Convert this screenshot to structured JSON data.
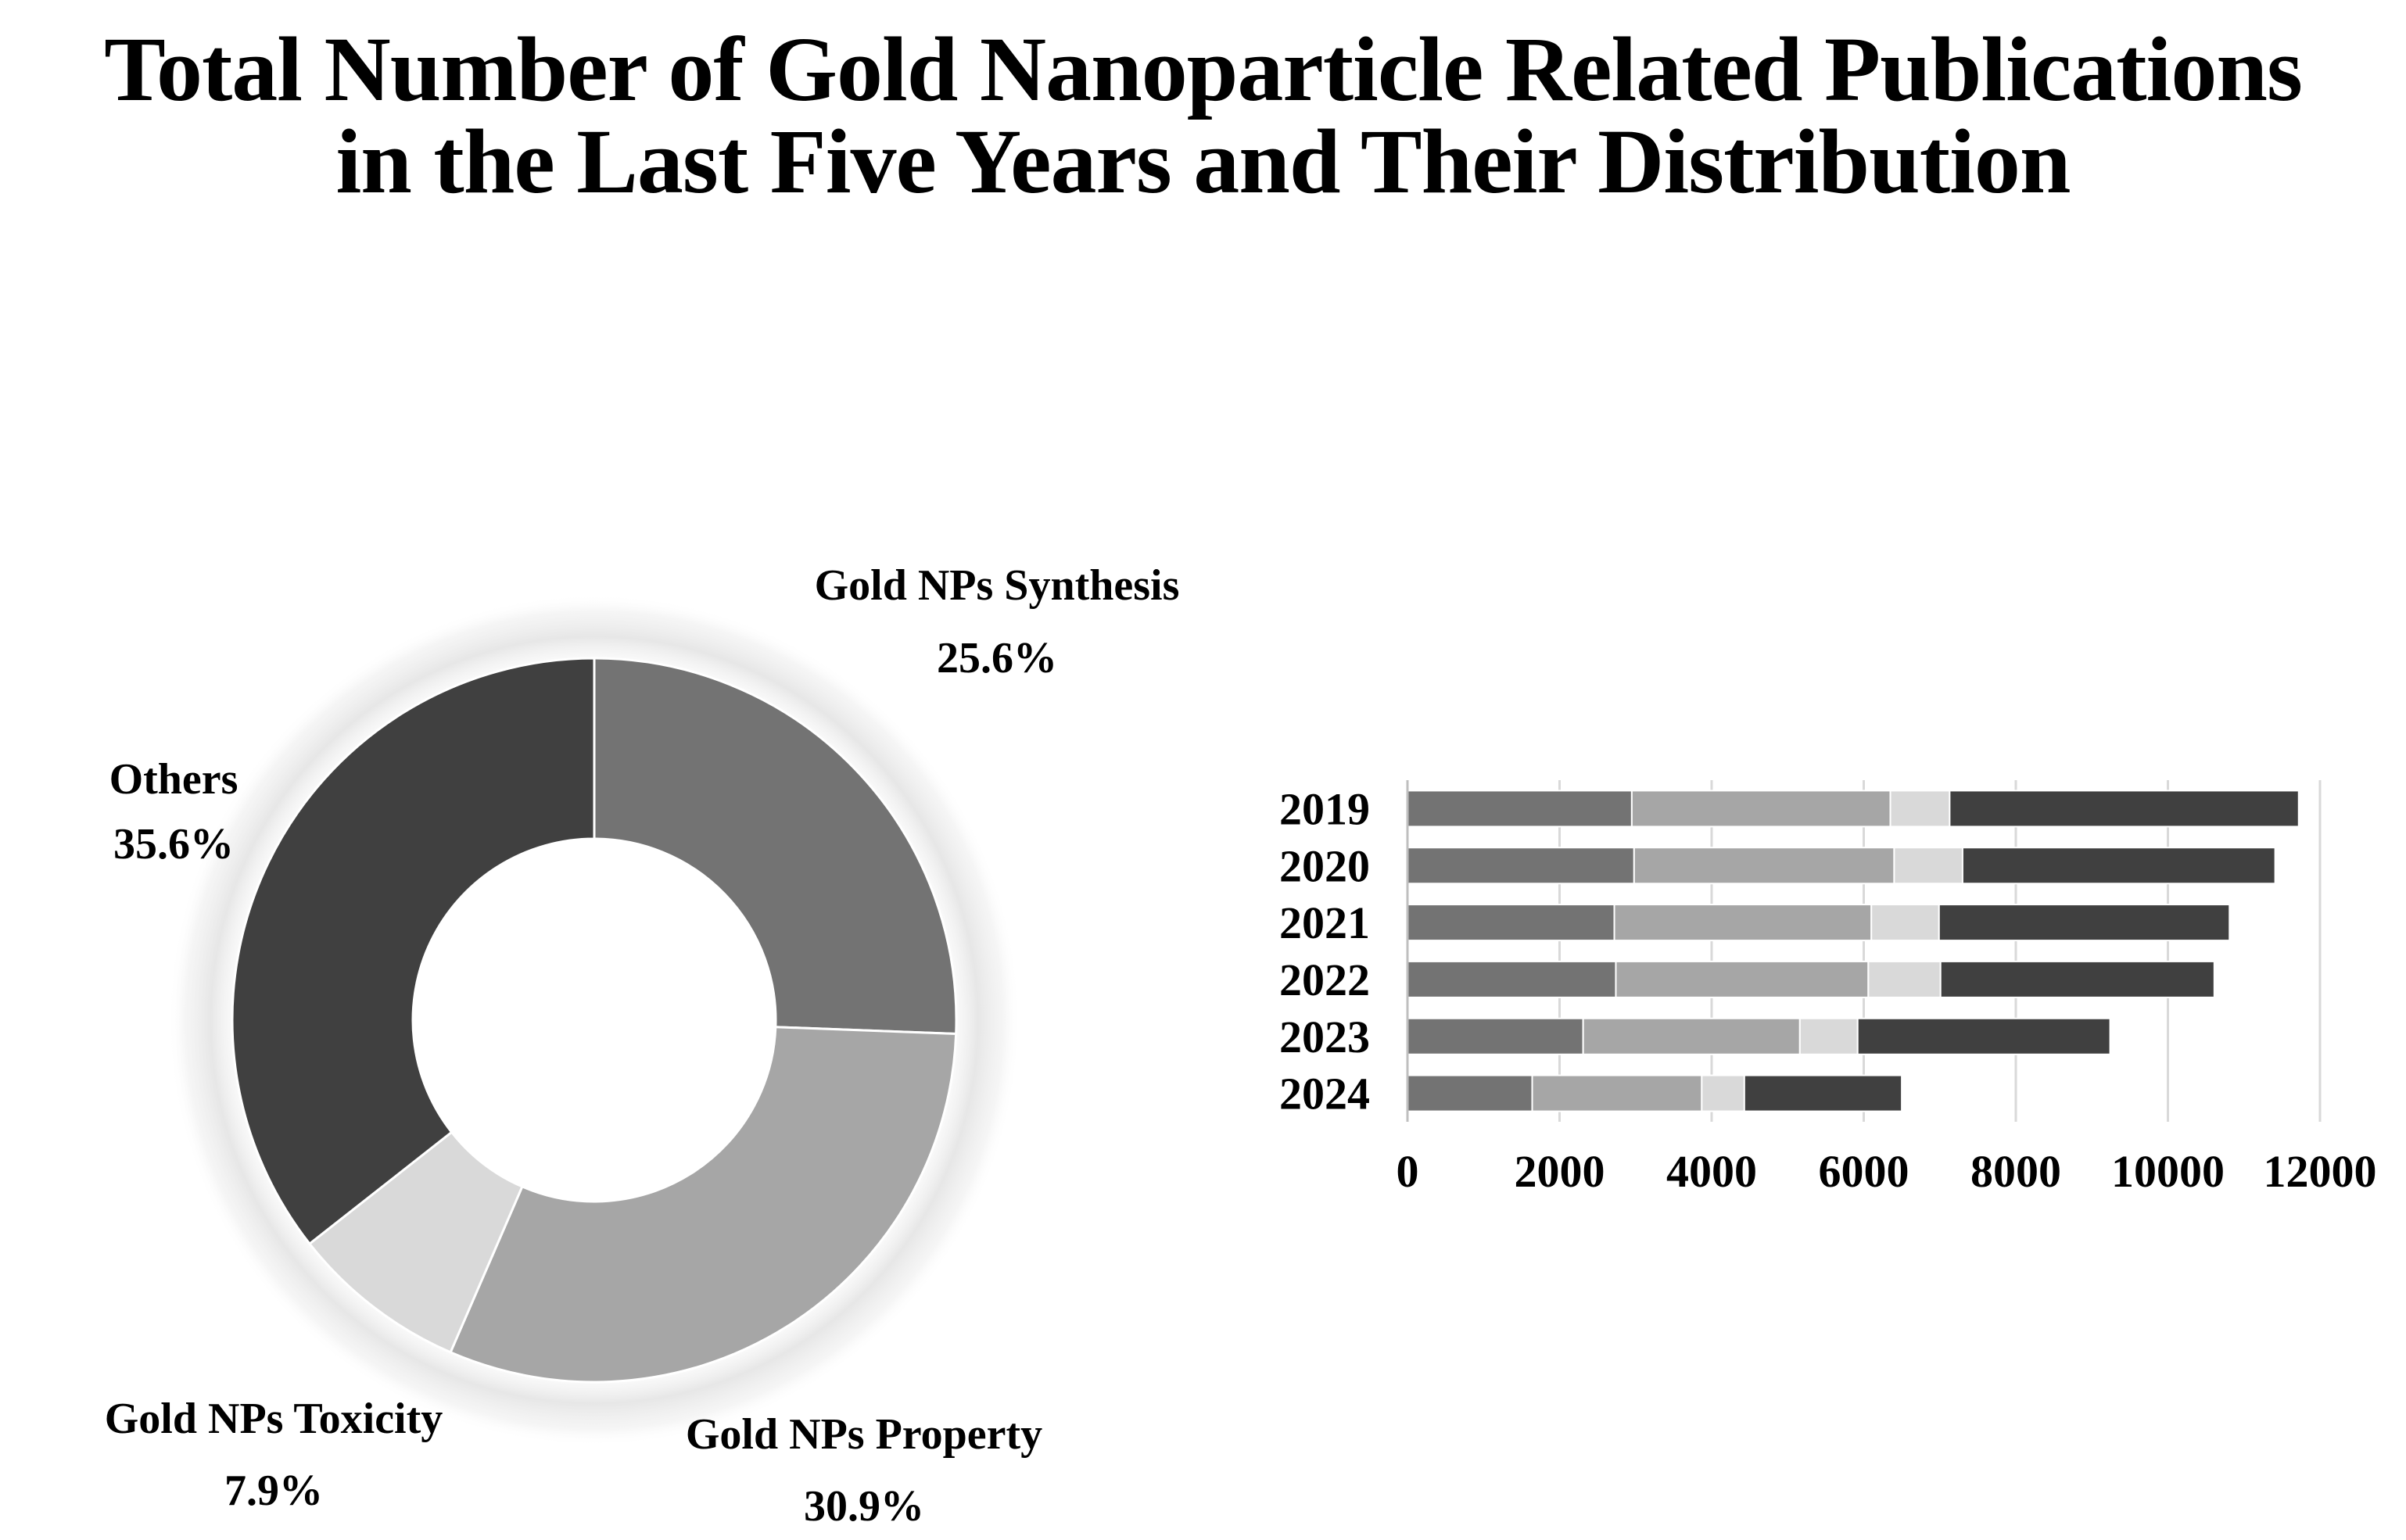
{
  "title_line1": "Total Number of Gold Nanoparticle Related Publications",
  "title_line2": "in the Last Five Years and Their Distribution",
  "colors": {
    "synthesis": "#737373",
    "property": "#a6a6a6",
    "toxicity": "#d9d9d9",
    "others": "#404040",
    "grid": "#d9d9d9",
    "text": "#000000"
  },
  "chart_data": [
    {
      "type": "pie",
      "variant": "donut",
      "title": "",
      "slices": [
        {
          "label": "Gold NPs Synthesis",
          "value": 25.6,
          "display": "25.6%",
          "color_key": "synthesis"
        },
        {
          "label": "Gold NPs Property",
          "value": 30.9,
          "display": "30.9%",
          "color_key": "property"
        },
        {
          "label": "Gold NPs Toxicity",
          "value": 7.9,
          "display": "7.9%",
          "color_key": "toxicity"
        },
        {
          "label": "Others",
          "value": 35.6,
          "display": "35.6%",
          "color_key": "others"
        }
      ]
    },
    {
      "type": "bar",
      "orientation": "horizontal",
      "stacked": true,
      "title": "",
      "xlabel": "",
      "ylabel": "",
      "categories": [
        "2019",
        "2020",
        "2021",
        "2022",
        "2023",
        "2024"
      ],
      "xlim": [
        0,
        12000
      ],
      "xticks": [
        "0",
        "2000",
        "4000",
        "6000",
        "8000",
        "10000",
        "12000"
      ],
      "grid": true,
      "series": [
        {
          "name": "Gold NPs Synthesis",
          "color_key": "synthesis",
          "values": [
            2950,
            2980,
            2720,
            2740,
            2310,
            1640
          ]
        },
        {
          "name": "Gold NPs Property",
          "color_key": "property",
          "values": [
            3400,
            3420,
            3380,
            3320,
            2850,
            2230
          ]
        },
        {
          "name": "Gold NPs Toxicity",
          "color_key": "toxicity",
          "values": [
            780,
            900,
            890,
            950,
            760,
            560
          ]
        },
        {
          "name": "Others",
          "color_key": "others",
          "values": [
            4590,
            4110,
            3820,
            3600,
            3320,
            2070
          ]
        }
      ]
    }
  ]
}
